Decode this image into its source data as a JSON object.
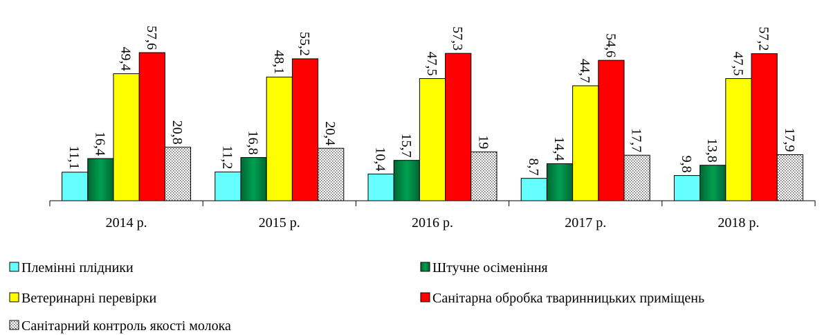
{
  "chart_data": {
    "type": "bar",
    "categories": [
      "2014 р.",
      "2015 р.",
      "2016 р.",
      "2017 р.",
      "2018 р."
    ],
    "series": [
      {
        "name": "Племінні плідники",
        "color": "#66ffff",
        "values": [
          11.1,
          11.2,
          10.4,
          8.7,
          9.8
        ],
        "value_labels": [
          "11,1",
          "11,2",
          "10,4",
          "8,7",
          "9,8"
        ]
      },
      {
        "name": "Штучне осіменіння",
        "color": "#00a050",
        "values": [
          16.4,
          16.8,
          15.7,
          14.4,
          13.8
        ],
        "value_labels": [
          "16,4",
          "16,8",
          "15,7",
          "14,4",
          "13,8"
        ]
      },
      {
        "name": "Ветеринарні перевірки",
        "color": "#ffff00",
        "values": [
          49.4,
          48.1,
          47.5,
          44.7,
          47.5
        ],
        "value_labels": [
          "49,4",
          "48,1",
          "47,5",
          "44,7",
          "47,5"
        ]
      },
      {
        "name": "Санітарна обробка тваринницьких приміщень",
        "color": "#ff0000",
        "values": [
          57.6,
          55.2,
          57.3,
          54.6,
          57.2
        ],
        "value_labels": [
          "57,6",
          "55,2",
          "57,3",
          "54,6",
          "57,2"
        ]
      },
      {
        "name": "Санітарний контроль якості молока",
        "color": "#ffffff",
        "pattern": "dots",
        "values": [
          20.8,
          20.4,
          19,
          17.7,
          17.9
        ],
        "value_labels": [
          "20,8",
          "20,4",
          "19",
          "17,7",
          "17,9"
        ]
      }
    ]
  }
}
